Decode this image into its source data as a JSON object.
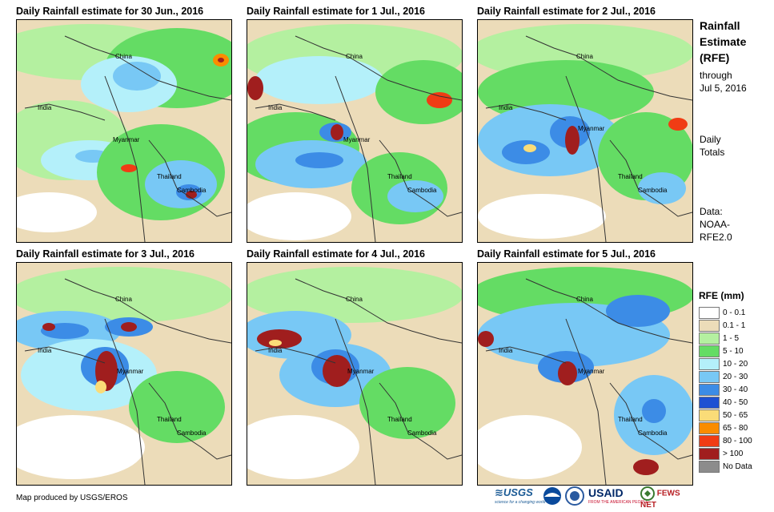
{
  "panels": [
    {
      "title": "Daily Rainfall estimate for 30 Jun., 2016",
      "labels": {
        "china": "China",
        "india": "India",
        "myanmar": "Myanmar",
        "thailand": "Thailand",
        "cambodia": "Cambodia"
      }
    },
    {
      "title": "Daily Rainfall estimate for 1 Jul., 2016",
      "labels": {
        "china": "China",
        "india": "India",
        "myanmar": "Myanmar",
        "thailand": "Thailand",
        "cambodia": "Cambodia"
      }
    },
    {
      "title": "Daily Rainfall estimate for 2 Jul., 2016",
      "labels": {
        "china": "China",
        "india": "India",
        "myanmar": "Myanmar",
        "thailand": "Thailand",
        "cambodia": "Cambodia"
      }
    },
    {
      "title": "Daily Rainfall estimate for 3 Jul., 2016",
      "labels": {
        "china": "China",
        "india": "India",
        "myanmar": "Myanmar",
        "thailand": "Thailand",
        "cambodia": "Cambodia"
      }
    },
    {
      "title": "Daily Rainfall estimate for 4 Jul., 2016",
      "labels": {
        "china": "China",
        "india": "India",
        "myanmar": "Myanmar",
        "thailand": "Thailand",
        "cambodia": "Cambodia"
      }
    },
    {
      "title": "Daily Rainfall estimate for 5 Jul., 2016",
      "labels": {
        "china": "China",
        "india": "India",
        "myanmar": "Myanmar",
        "thailand": "Thailand",
        "cambodia": "Cambodia"
      }
    }
  ],
  "sidebar": {
    "title_lines": [
      "Rainfall",
      "Estimate",
      "(RFE)"
    ],
    "through": "through",
    "date": "Jul 5, 2016",
    "daily": "Daily",
    "totals": "Totals",
    "data_label": "Data:",
    "source_line1": "NOAA-",
    "source_line2": "RFE2.0"
  },
  "legend": {
    "title": "RFE (mm)",
    "items": [
      {
        "label": "0 - 0.1",
        "color": "#ffffff"
      },
      {
        "label": "0.1 - 1",
        "color": "#ecdcb9"
      },
      {
        "label": "1 - 5",
        "color": "#b4f0a0"
      },
      {
        "label": "5 - 10",
        "color": "#64dc64"
      },
      {
        "label": "10 - 20",
        "color": "#b4f0fa"
      },
      {
        "label": "20 - 30",
        "color": "#78c8f5"
      },
      {
        "label": "30 - 40",
        "color": "#3c8ce6"
      },
      {
        "label": "40 - 50",
        "color": "#1e50d2"
      },
      {
        "label": "50 - 65",
        "color": "#fadc78"
      },
      {
        "label": "65 - 80",
        "color": "#fa8c00"
      },
      {
        "label": "80 - 100",
        "color": "#f03c14"
      },
      {
        "label": "> 100",
        "color": "#a01e1e"
      },
      {
        "label": "No Data",
        "color": "#8c8c8c"
      }
    ]
  },
  "credit": "Map produced by USGS/EROS",
  "logos": {
    "usgs": "≋USGS",
    "usgs_tagline": "science for a changing world",
    "usaid": "USAID",
    "usaid_tagline": "FROM THE AMERICAN PEOPLE",
    "fews": "FEWS NET"
  }
}
